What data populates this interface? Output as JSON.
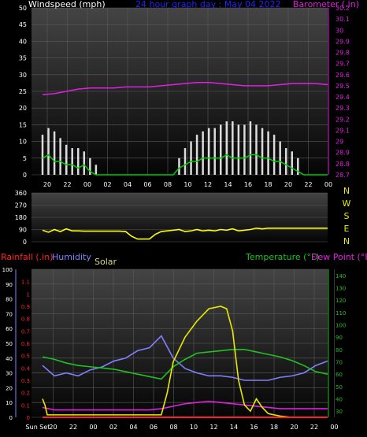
{
  "chart_data": [
    {
      "type": "line",
      "title": "24 hour graph day : May 04 2022",
      "ylabel_left": "Windspeed (mph)",
      "ylabel_right": "Barometer (.in)",
      "x_ticks": [
        "20",
        "22",
        "00",
        "02",
        "04",
        "06",
        "08",
        "10",
        "12",
        "14",
        "16",
        "18",
        "20",
        "22",
        "00"
      ],
      "y_left_ticks": [
        "0",
        "5",
        "10",
        "15",
        "20",
        "25",
        "30",
        "35",
        "40",
        "45",
        "50"
      ],
      "y_left_range": [
        0,
        50
      ],
      "y_right_ticks": [
        "28.7",
        "28.8",
        "28.9",
        "29",
        "29.1",
        "29.2",
        "29.3",
        "29.4",
        "29.5",
        "29.6",
        "29.7",
        "29.8",
        "29.9",
        "30",
        "30.1",
        "30.2"
      ],
      "y_right_range": [
        28.7,
        30.2
      ],
      "series": [
        {
          "name": "Barometer",
          "axis": "right",
          "x": [
            0,
            1,
            2,
            3,
            4,
            5,
            6,
            7,
            8,
            9,
            10,
            11,
            12,
            13,
            14,
            15,
            16,
            17,
            18,
            19,
            20,
            21,
            22,
            23,
            24
          ],
          "values": [
            29.42,
            29.43,
            29.45,
            29.47,
            29.48,
            29.48,
            29.48,
            29.49,
            29.49,
            29.49,
            29.5,
            29.51,
            29.52,
            29.53,
            29.53,
            29.52,
            29.51,
            29.5,
            29.5,
            29.5,
            29.51,
            29.52,
            29.52,
            29.52,
            29.51
          ]
        },
        {
          "name": "Wind gust",
          "axis": "left",
          "x": [
            0,
            0.5,
            1,
            1.5,
            2,
            2.5,
            3,
            3.5,
            4,
            4.5,
            5,
            5.5,
            6,
            6.5,
            7,
            7.5,
            8,
            8.5,
            9,
            9.5,
            10,
            10.5,
            11,
            11.5,
            12,
            12.5,
            13,
            13.5,
            14,
            14.5,
            15,
            15.5,
            16,
            16.5,
            17,
            17.5,
            18,
            18.5,
            19,
            19.5,
            20,
            20.5,
            21,
            21.5,
            22,
            22.5,
            23,
            23.5,
            24
          ],
          "values": [
            12,
            14,
            13,
            11,
            9,
            8,
            8,
            7,
            5,
            3,
            0,
            0,
            0,
            0,
            0,
            0,
            0,
            0,
            0,
            0,
            0,
            0,
            0,
            5,
            8,
            10,
            12,
            13,
            14,
            14,
            15,
            16,
            16,
            15,
            15,
            16,
            15,
            14,
            13,
            12,
            10,
            8,
            7,
            5,
            0,
            0,
            0,
            0,
            0
          ]
        },
        {
          "name": "Wind speed",
          "axis": "left",
          "x": [
            0,
            0.5,
            1,
            1.5,
            2,
            2.5,
            3,
            3.5,
            4,
            4.5,
            5,
            5.5,
            6,
            6.5,
            7,
            7.5,
            8,
            8.5,
            9,
            9.5,
            10,
            10.5,
            11,
            11.5,
            12,
            12.5,
            13,
            13.5,
            14,
            14.5,
            15,
            15.5,
            16,
            16.5,
            17,
            17.5,
            18,
            18.5,
            19,
            19.5,
            20,
            20.5,
            21,
            21.5,
            22,
            22.5,
            23,
            23.5,
            24
          ],
          "values": [
            5,
            6,
            4,
            4,
            3,
            3,
            2,
            3,
            1,
            0,
            0,
            0,
            0,
            0,
            0,
            0,
            0,
            0,
            0,
            0,
            0,
            0,
            0,
            2,
            3,
            4,
            4,
            5,
            5,
            5,
            5,
            6,
            5,
            5,
            5,
            6,
            6,
            5,
            5,
            4,
            4,
            3,
            2,
            1,
            0,
            0,
            0,
            0,
            0
          ]
        }
      ]
    },
    {
      "type": "line",
      "title": "",
      "ylabel_left": "",
      "y_left_ticks": [
        "0",
        "90",
        "180",
        "270",
        "360"
      ],
      "y_left_range": [
        0,
        360
      ],
      "compass": [
        "N",
        "W",
        "S",
        "E",
        "N"
      ],
      "series": [
        {
          "name": "Wind direction",
          "x": [
            0,
            0.5,
            1,
            1.5,
            2,
            2.5,
            3,
            3.5,
            4,
            4.5,
            5,
            5.5,
            6,
            6.5,
            7,
            7.5,
            8,
            8.5,
            9,
            9.5,
            10,
            10.5,
            11,
            11.5,
            12,
            12.5,
            13,
            13.5,
            14,
            14.5,
            15,
            15.5,
            16,
            16.5,
            17,
            17.5,
            18,
            18.5,
            19,
            19.5,
            20,
            20.5,
            21,
            21.5,
            22,
            22.5,
            23,
            23.5,
            24
          ],
          "values": [
            85,
            70,
            90,
            75,
            95,
            80,
            80,
            78,
            78,
            78,
            78,
            78,
            78,
            78,
            75,
            40,
            20,
            20,
            20,
            55,
            75,
            80,
            85,
            90,
            75,
            80,
            90,
            80,
            85,
            80,
            90,
            85,
            95,
            80,
            85,
            90,
            100,
            95,
            100,
            100,
            100,
            100,
            100,
            100,
            100,
            100,
            100,
            100,
            100
          ]
        }
      ]
    },
    {
      "type": "line",
      "title": "",
      "ylabel_left_1": "Rainfall (.in)",
      "ylabel_left_2": "Humidity",
      "ylabel_left_3": "Solar",
      "ylabel_right_1": "Temperature (°F)",
      "ylabel_right_2": "Dew Point (°F)",
      "x_ticks": [
        "Sun Set",
        "20",
        "22",
        "00",
        "02",
        "04",
        "06",
        "08",
        "10",
        "12",
        "14",
        "16",
        "18",
        "20",
        "22",
        "00"
      ],
      "y_rain_ticks": [
        "0",
        "0.1",
        "0.2",
        "0.3",
        "0.4",
        "0.5",
        "0.6",
        "0.7",
        "0.8",
        "0.9",
        "1",
        "1.1"
      ],
      "y_rain_range": [
        0,
        1.2
      ],
      "y_humidity_ticks": [
        "0",
        "10",
        "20",
        "30",
        "40",
        "50",
        "60",
        "70",
        "80",
        "90",
        "100"
      ],
      "y_humidity_range": [
        0,
        100
      ],
      "y_temp_ticks": [
        "30",
        "40",
        "50",
        "60",
        "70",
        "80",
        "90",
        "100",
        "110",
        "120",
        "130",
        "140"
      ],
      "y_temp_range": [
        25,
        145
      ],
      "series": [
        {
          "name": "Humidity",
          "axis": "humidity",
          "x": [
            0,
            1,
            2,
            3,
            4,
            5,
            6,
            7,
            8,
            9,
            10,
            11,
            12,
            13,
            14,
            15,
            16,
            17,
            18,
            19,
            20,
            21,
            22,
            23,
            24
          ],
          "values": [
            35,
            28,
            30,
            28,
            32,
            34,
            38,
            40,
            45,
            47,
            55,
            40,
            33,
            30,
            28,
            28,
            27,
            25,
            25,
            25,
            27,
            28,
            30,
            35,
            38
          ]
        },
        {
          "name": "Temperature",
          "axis": "temp",
          "x": [
            0,
            1,
            2,
            3,
            4,
            5,
            6,
            7,
            8,
            9,
            10,
            11,
            12,
            13,
            14,
            15,
            16,
            17,
            18,
            19,
            20,
            21,
            22,
            23,
            24
          ],
          "values": [
            74,
            72,
            69,
            67,
            66,
            65,
            64,
            62,
            60,
            58,
            56,
            66,
            72,
            77,
            78,
            79,
            80,
            80,
            78,
            76,
            74,
            71,
            67,
            62,
            60
          ]
        },
        {
          "name": "Dew Point",
          "axis": "temp",
          "x": [
            0,
            1,
            2,
            3,
            4,
            5,
            6,
            7,
            8,
            9,
            10,
            11,
            12,
            13,
            14,
            15,
            16,
            17,
            18,
            19,
            20,
            21,
            22,
            23,
            24
          ],
          "values": [
            33,
            31,
            31,
            31,
            31,
            31,
            31,
            31,
            31,
            31,
            32,
            34,
            36,
            37,
            38,
            37,
            36,
            35,
            34,
            33,
            32,
            32,
            32,
            32,
            32
          ]
        },
        {
          "name": "Solar",
          "axis": "rain",
          "x": [
            0,
            0.2,
            0.4,
            1,
            4,
            7,
            8,
            10,
            10.5,
            11,
            12,
            13,
            14,
            15,
            15.5,
            16,
            16.5,
            17,
            17.5,
            18,
            18.5,
            19,
            19.5,
            20,
            21,
            24
          ],
          "values": [
            0.15,
            0.1,
            0.02,
            0.02,
            0.02,
            0.02,
            0.02,
            0.02,
            0.2,
            0.45,
            0.65,
            0.78,
            0.88,
            0.9,
            0.88,
            0.7,
            0.3,
            0.1,
            0.05,
            0.15,
            0.08,
            0.03,
            0.02,
            0.01,
            0.0,
            0.0
          ]
        },
        {
          "name": "Rainfall",
          "axis": "rain",
          "x": [
            0,
            24
          ],
          "values": [
            0,
            0
          ]
        }
      ]
    }
  ],
  "colors": {
    "panel_top": "#3d3d3d",
    "panel_bottom": "#050505",
    "grid": "#5a5a5a",
    "axis_text": "#ffffff",
    "windspeed_label": "#ffffff",
    "title": "#2222ff",
    "barometer": "#e020e0",
    "wind_gust": "#ffffff",
    "wind_speed": "#00cc00",
    "wind_dir": "#ffff00",
    "rain": "#ff2020",
    "humidity": "#8080ff",
    "solar": "#e8e800",
    "temperature": "#20c020",
    "dewpoint": "#e020e0",
    "compass": "#e8e800"
  }
}
